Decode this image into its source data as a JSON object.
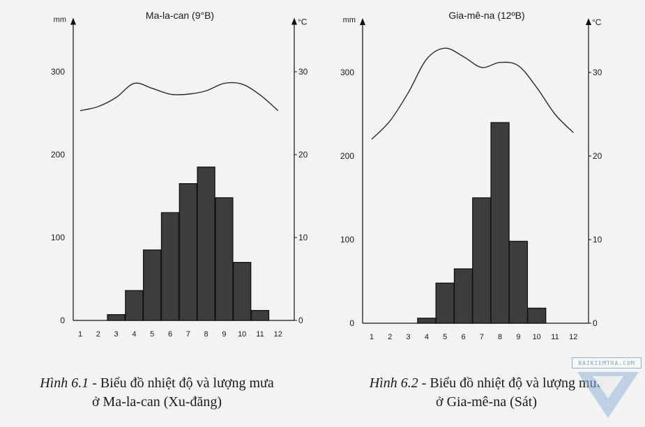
{
  "chart_data": [
    {
      "type": "bar",
      "title": "Ma-la-can (9°B)",
      "y_left_unit": "mm",
      "y_right_unit": "°C",
      "y_left_ticks": [
        "0",
        "100",
        "200",
        "300"
      ],
      "y_right_ticks": [
        "0",
        "10",
        "20",
        "30"
      ],
      "ylim_left": [
        0,
        350
      ],
      "ylim_right": [
        0,
        35
      ],
      "categories": [
        "1",
        "2",
        "3",
        "4",
        "5",
        "6",
        "7",
        "8",
        "9",
        "10",
        "11",
        "12"
      ],
      "series": [
        {
          "kind": "bar",
          "axis": "left",
          "values": [
            0,
            0,
            7,
            36,
            85,
            130,
            165,
            185,
            148,
            70,
            12,
            0
          ]
        },
        {
          "kind": "line",
          "axis": "right",
          "values": [
            25.3,
            25.8,
            26.9,
            28.6,
            28.0,
            27.3,
            27.3,
            27.7,
            28.6,
            28.5,
            27.2,
            25.3
          ]
        }
      ],
      "grid": false
    },
    {
      "type": "bar",
      "title": "Gia-mê-na (12ºB)",
      "y_left_unit": "mm",
      "y_right_unit": "°C",
      "y_left_ticks": [
        "0",
        "100",
        "200",
        "300"
      ],
      "y_right_ticks": [
        "0",
        "10",
        "20",
        "30"
      ],
      "ylim_left": [
        0,
        350
      ],
      "ylim_right": [
        0,
        35
      ],
      "categories": [
        "1",
        "2",
        "3",
        "4",
        "5",
        "6",
        "7",
        "8",
        "9",
        "10",
        "11",
        "12"
      ],
      "series": [
        {
          "kind": "bar",
          "axis": "left",
          "values": [
            0,
            0,
            0,
            6,
            48,
            65,
            150,
            240,
            98,
            18,
            0,
            0
          ]
        },
        {
          "kind": "line",
          "axis": "right",
          "values": [
            22.0,
            24.2,
            27.6,
            31.6,
            32.9,
            31.9,
            30.6,
            31.2,
            30.8,
            28.2,
            25.0,
            22.8
          ]
        }
      ],
      "grid": false
    }
  ],
  "captions": [
    {
      "fig_label": "Hình 6.1",
      "line1_rest": " - Biểu đồ nhiệt độ và lượng mưa",
      "line2": "ở Ma-la-can (Xu-đăng)"
    },
    {
      "fig_label": "Hình 6.2",
      "line1_rest": " - Biểu đồ nhiệt độ và lượng mưa",
      "line2": "ở Gia-mê-na (Sát)"
    }
  ],
  "watermark": {
    "text": "BAIKIEMTRA.COM"
  },
  "colors": {
    "bar_fill": "#3d3d3d",
    "bar_stroke": "#111111",
    "axis": "#111111",
    "line": "#2a2a2a",
    "text": "#1a1a1a"
  }
}
